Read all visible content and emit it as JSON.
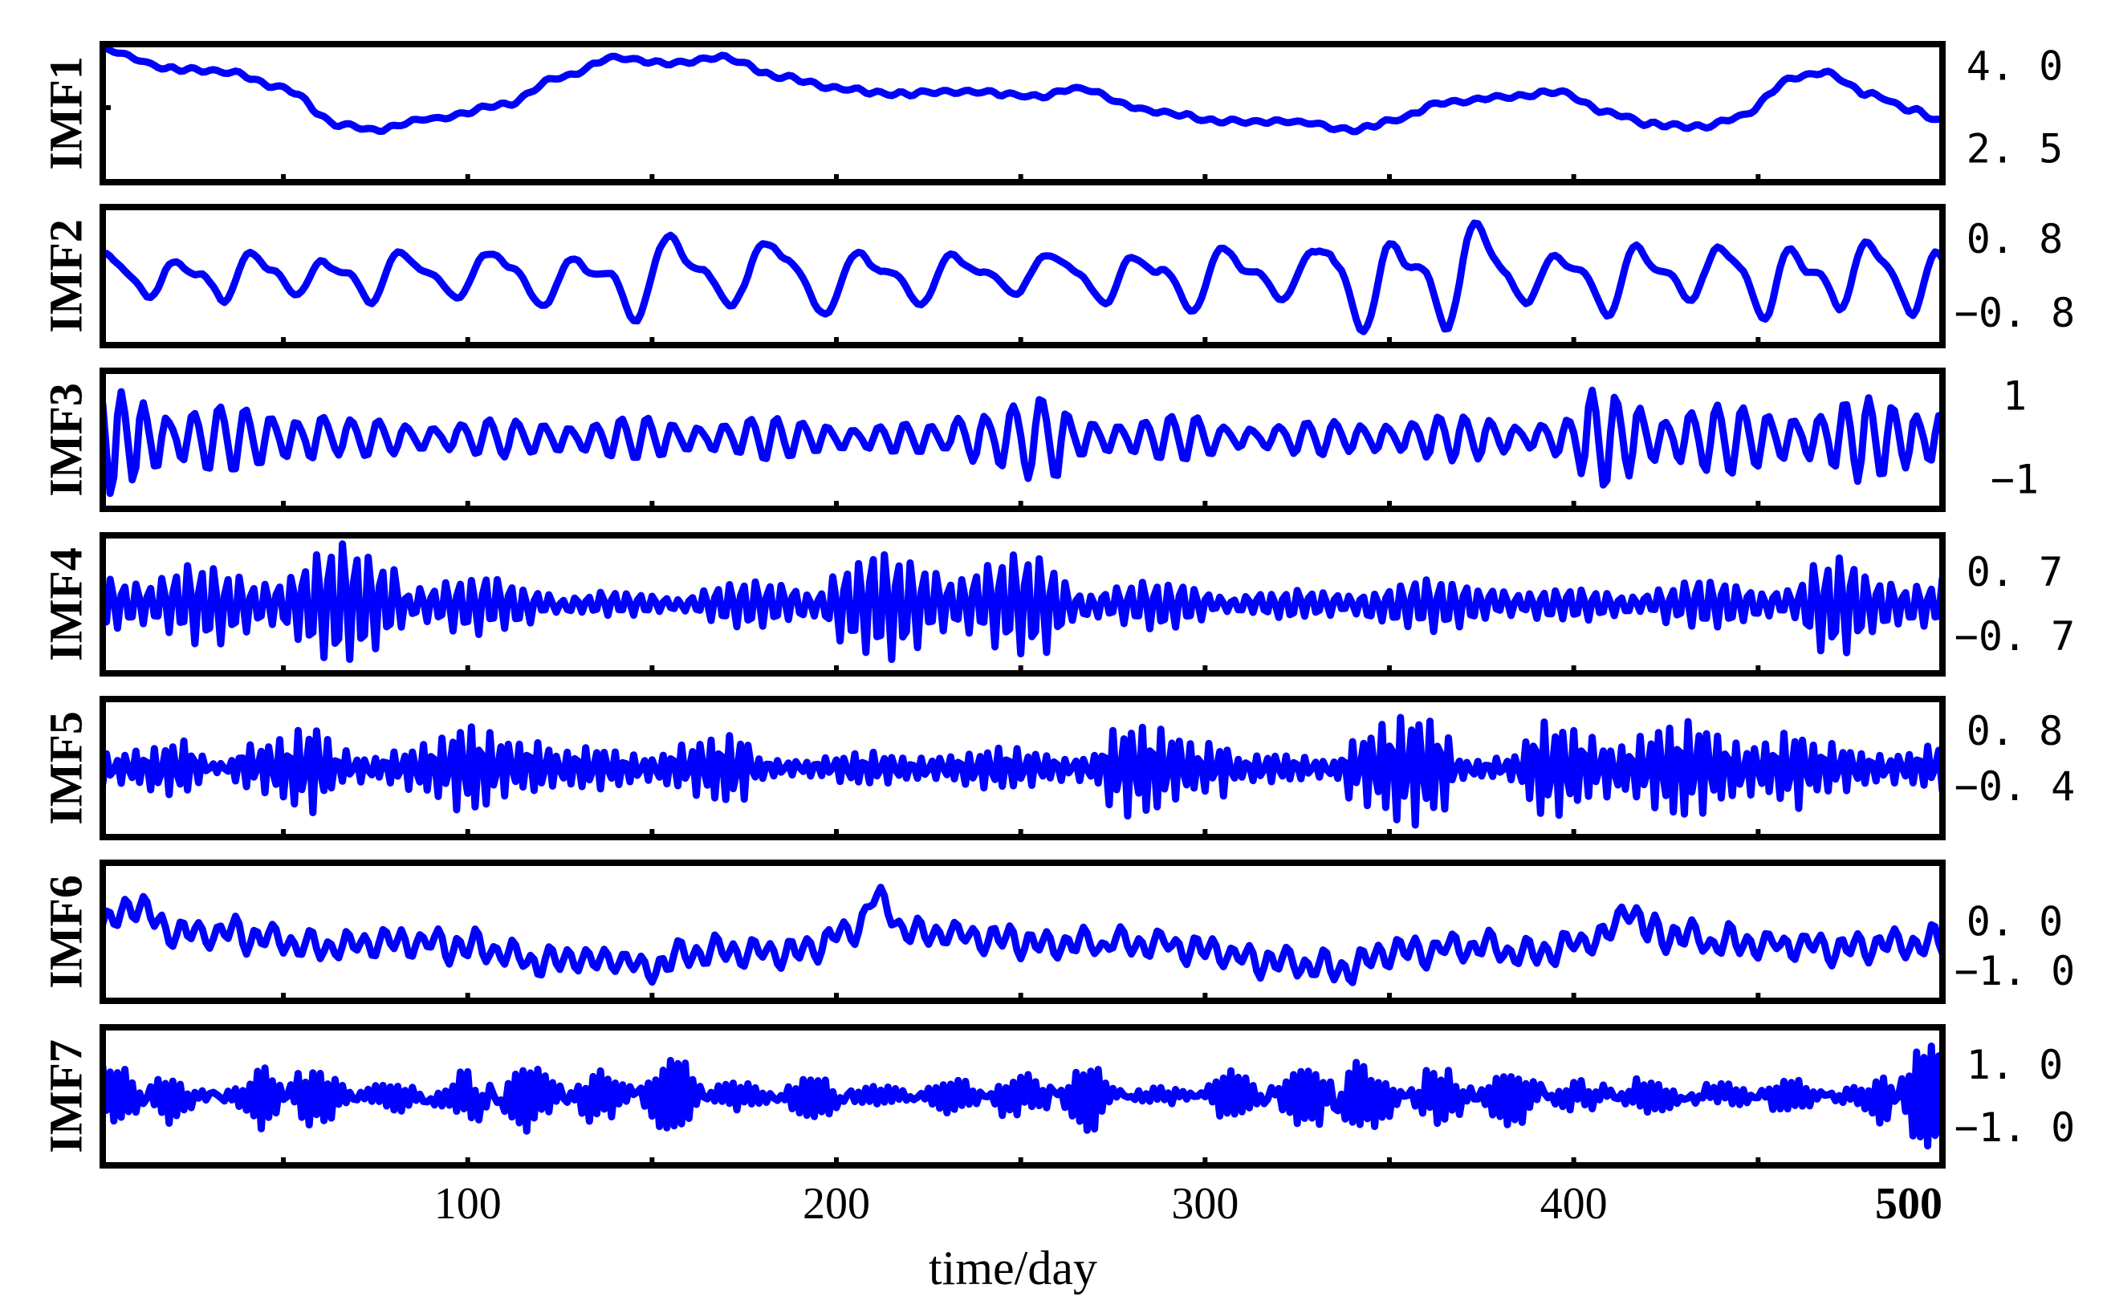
{
  "chart_data": {
    "type": "line",
    "xlabel": "time/day",
    "xlim": [
      1,
      500
    ],
    "xticks": [
      "100",
      "200",
      "300",
      "400",
      "500"
    ],
    "line_color": "#0000ff",
    "panels": [
      {
        "name": "IMF1",
        "ylim": [
          1.9,
          4.4
        ],
        "right_ticks": [
          {
            "value": 4.0,
            "label": "4. 0"
          },
          {
            "value": 2.5,
            "label": "2. 5"
          }
        ],
        "keyframes": [
          [
            1,
            4.3
          ],
          [
            20,
            3.95
          ],
          [
            35,
            3.9
          ],
          [
            50,
            3.6
          ],
          [
            65,
            2.95
          ],
          [
            75,
            2.85
          ],
          [
            90,
            3.05
          ],
          [
            110,
            3.3
          ],
          [
            125,
            3.8
          ],
          [
            140,
            4.15
          ],
          [
            155,
            4.05
          ],
          [
            170,
            4.15
          ],
          [
            185,
            3.8
          ],
          [
            200,
            3.6
          ],
          [
            215,
            3.5
          ],
          [
            235,
            3.55
          ],
          [
            255,
            3.45
          ],
          [
            265,
            3.6
          ],
          [
            285,
            3.2
          ],
          [
            305,
            3.0
          ],
          [
            325,
            3.0
          ],
          [
            340,
            2.85
          ],
          [
            350,
            3.0
          ],
          [
            365,
            3.35
          ],
          [
            385,
            3.45
          ],
          [
            395,
            3.55
          ],
          [
            410,
            3.15
          ],
          [
            420,
            2.95
          ],
          [
            435,
            2.9
          ],
          [
            445,
            3.1
          ],
          [
            460,
            3.8
          ],
          [
            468,
            3.9
          ],
          [
            480,
            3.5
          ],
          [
            492,
            3.2
          ],
          [
            500,
            3.0
          ]
        ],
        "waves": [
          {
            "period": 6,
            "amp": 0.03
          }
        ],
        "noise": 0.025
      },
      {
        "name": "IMF2",
        "ylim": [
          -1.5,
          1.5
        ],
        "right_ticks": [
          {
            "value": 0.8,
            "label": "0. 8"
          },
          {
            "value": -0.8,
            "label": "−0. 8"
          }
        ],
        "osc_segments": [
          [
            0,
            80,
            20,
            0.5
          ],
          [
            80,
            140,
            24,
            0.6
          ],
          [
            140,
            210,
            26,
            0.85
          ],
          [
            210,
            270,
            25,
            0.5
          ],
          [
            270,
            330,
            24,
            0.65
          ],
          [
            330,
            380,
            22,
            1.1
          ],
          [
            380,
            440,
            22,
            0.7
          ],
          [
            440,
            500,
            20,
            0.8
          ]
        ],
        "osc_shape": 0.3,
        "noise": 0.06
      },
      {
        "name": "IMF3",
        "ylim": [
          -1.7,
          1.6
        ],
        "right_ticks": [
          {
            "value": 1,
            "label": "1"
          },
          {
            "value": -1,
            "label": "−1"
          }
        ],
        "osc_segments": [
          [
            0,
            15,
            6,
            1.5
          ],
          [
            15,
            60,
            7,
            0.8
          ],
          [
            60,
            120,
            7.5,
            0.45
          ],
          [
            120,
            200,
            7,
            0.5
          ],
          [
            200,
            230,
            7,
            0.35
          ],
          [
            230,
            260,
            7.5,
            1.0
          ],
          [
            260,
            300,
            7,
            0.55
          ],
          [
            300,
            340,
            7.5,
            0.4
          ],
          [
            340,
            380,
            7,
            0.55
          ],
          [
            380,
            400,
            7,
            0.5
          ],
          [
            400,
            420,
            6.5,
            1.2
          ],
          [
            420,
            470,
            7,
            0.85
          ],
          [
            470,
            500,
            6.5,
            1.0
          ]
        ],
        "osc_shape": 0.1,
        "noise": 0.04
      },
      {
        "name": "IMF4",
        "ylim": [
          -1.5,
          1.5
        ],
        "right_ticks": [
          {
            "value": 0.7,
            "label": "0. 7"
          },
          {
            "value": -0.7,
            "label": "−0. 7"
          }
        ],
        "osc_segments": [
          [
            0,
            50,
            3.5,
            0.85
          ],
          [
            50,
            80,
            3.5,
            1.3
          ],
          [
            80,
            120,
            3.5,
            0.6
          ],
          [
            120,
            160,
            3.5,
            0.25
          ],
          [
            160,
            195,
            3.5,
            0.5
          ],
          [
            195,
            215,
            3.5,
            1.2
          ],
          [
            215,
            260,
            3.5,
            1.1
          ],
          [
            260,
            300,
            3.5,
            0.5
          ],
          [
            300,
            340,
            3.5,
            0.3
          ],
          [
            340,
            380,
            3.5,
            0.55
          ],
          [
            380,
            420,
            3.5,
            0.35
          ],
          [
            420,
            460,
            3.5,
            0.5
          ],
          [
            460,
            475,
            3.5,
            1.05
          ],
          [
            475,
            500,
            3.5,
            0.75
          ]
        ],
        "osc_shape": 0.05,
        "noise": 0.08
      },
      {
        "name": "IMF5",
        "ylim": [
          -1.5,
          1.5
        ],
        "right_ticks": [
          {
            "value": 0.8,
            "label": "0. 8"
          },
          {
            "value": -0.4,
            "label": "−0. 4"
          }
        ],
        "osc_segments": [
          [
            0,
            25,
            2.6,
            0.6
          ],
          [
            25,
            35,
            2.6,
            0.15
          ],
          [
            35,
            60,
            2.6,
            0.95
          ],
          [
            60,
            75,
            2.6,
            0.4
          ],
          [
            75,
            95,
            2.6,
            0.7
          ],
          [
            95,
            120,
            2.6,
            1.05
          ],
          [
            120,
            150,
            2.6,
            0.45
          ],
          [
            150,
            175,
            2.6,
            0.75
          ],
          [
            175,
            200,
            2.6,
            0.3
          ],
          [
            200,
            220,
            2.6,
            0.35
          ],
          [
            220,
            270,
            2.6,
            0.45
          ],
          [
            270,
            305,
            2.6,
            1.0
          ],
          [
            305,
            335,
            2.6,
            0.3
          ],
          [
            335,
            365,
            2.6,
            1.2
          ],
          [
            365,
            385,
            2.6,
            0.35
          ],
          [
            385,
            460,
            2.6,
            1.05
          ],
          [
            460,
            500,
            2.6,
            0.55
          ]
        ],
        "osc_shape": 0.05,
        "noise": 0.06
      },
      {
        "name": "IMF6",
        "ylim": [
          -1.6,
          1.2
        ],
        "right_ticks": [
          {
            "value": 0.0,
            "label": "0. 0"
          },
          {
            "value": -1.0,
            "label": "−1. 0"
          }
        ],
        "keyframes": [
          [
            1,
            -0.1
          ],
          [
            10,
            0.4
          ],
          [
            20,
            -0.2
          ],
          [
            40,
            -0.3
          ],
          [
            60,
            -0.5
          ],
          [
            80,
            -0.4
          ],
          [
            100,
            -0.5
          ],
          [
            120,
            -0.8
          ],
          [
            140,
            -0.75
          ],
          [
            150,
            -0.95
          ],
          [
            160,
            -0.6
          ],
          [
            190,
            -0.6
          ],
          [
            205,
            -0.2
          ],
          [
            210,
            0.45
          ],
          [
            220,
            -0.2
          ],
          [
            240,
            -0.3
          ],
          [
            260,
            -0.5
          ],
          [
            280,
            -0.4
          ],
          [
            300,
            -0.6
          ],
          [
            320,
            -0.8
          ],
          [
            340,
            -0.95
          ],
          [
            350,
            -0.65
          ],
          [
            370,
            -0.5
          ],
          [
            390,
            -0.6
          ],
          [
            410,
            -0.3
          ],
          [
            415,
            0.4
          ],
          [
            420,
            -0.2
          ],
          [
            440,
            -0.4
          ],
          [
            470,
            -0.5
          ],
          [
            500,
            -0.4
          ]
        ],
        "waves": [
          {
            "period": 5,
            "amp": 0.22
          },
          {
            "period": 11,
            "amp": 0.12
          }
        ],
        "noise": 0.12
      },
      {
        "name": "IMF7",
        "ylim": [
          -2.2,
          2.2
        ],
        "right_ticks": [
          {
            "value": 1.0,
            "label": "1. 0"
          },
          {
            "value": -1.0,
            "label": "−1. 0"
          }
        ],
        "osc_segments": [
          [
            0,
            20,
            1.9,
            0.9
          ],
          [
            20,
            40,
            1.9,
            0.4
          ],
          [
            40,
            70,
            1.9,
            1.1
          ],
          [
            70,
            95,
            1.9,
            0.4
          ],
          [
            95,
            115,
            1.9,
            1.2
          ],
          [
            115,
            130,
            1.9,
            0.7
          ],
          [
            130,
            160,
            1.9,
            1.1
          ],
          [
            160,
            200,
            1.9,
            0.6
          ],
          [
            200,
            240,
            1.9,
            0.45
          ],
          [
            240,
            270,
            1.9,
            0.95
          ],
          [
            270,
            300,
            1.9,
            0.35
          ],
          [
            300,
            320,
            1.9,
            0.65
          ],
          [
            320,
            340,
            1.9,
            1.55
          ],
          [
            340,
            355,
            1.9,
            0.7
          ],
          [
            355,
            365,
            1.9,
            1.4
          ],
          [
            365,
            400,
            1.9,
            0.75
          ],
          [
            400,
            480,
            1.9,
            0.45
          ],
          [
            480,
            500,
            1.9,
            1.6
          ]
        ],
        "osc_shape": 0.0,
        "noise": 0.25
      }
    ]
  }
}
